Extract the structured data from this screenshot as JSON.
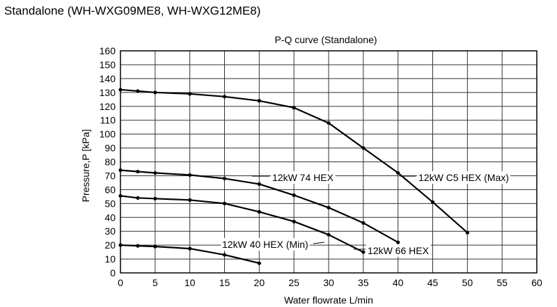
{
  "page": {
    "title": "Standalone (WH-WXG09ME8, WH-WXG12ME8)"
  },
  "chart_data": {
    "type": "line",
    "title": "P-Q curve (Standalone)",
    "xlabel": "Water flowrate L/min",
    "ylabel": "Pressure,P [kPa]",
    "xlim": [
      0,
      60
    ],
    "ylim": [
      0,
      160
    ],
    "xticks": [
      "0",
      "5",
      "10",
      "15",
      "20",
      "25",
      "30",
      "35",
      "40",
      "45",
      "50",
      "55",
      "60"
    ],
    "yticks": [
      "0",
      "10",
      "20",
      "30",
      "40",
      "50",
      "60",
      "70",
      "80",
      "90",
      "100",
      "110",
      "120",
      "130",
      "140",
      "150",
      "160"
    ],
    "grid": true,
    "series": [
      {
        "name": "12kW C5 HEX (Max)",
        "points": [
          [
            0,
            132
          ],
          [
            2.5,
            131
          ],
          [
            5,
            130
          ],
          [
            10,
            129
          ],
          [
            15,
            127
          ],
          [
            20,
            124
          ],
          [
            25,
            119
          ],
          [
            30,
            108
          ],
          [
            35,
            90
          ],
          [
            40,
            72
          ],
          [
            45,
            51
          ],
          [
            50,
            29
          ]
        ]
      },
      {
        "name": "12kW 74 HEX",
        "points": [
          [
            0,
            74
          ],
          [
            2.5,
            73
          ],
          [
            5,
            72
          ],
          [
            10,
            70.5
          ],
          [
            15,
            68
          ],
          [
            20,
            64
          ],
          [
            25,
            56
          ],
          [
            30,
            47
          ],
          [
            35,
            36
          ],
          [
            40,
            22
          ]
        ]
      },
      {
        "name": "12kW 66 HEX",
        "points": [
          [
            0,
            55.5
          ],
          [
            2.5,
            54
          ],
          [
            5,
            53.5
          ],
          [
            10,
            52.5
          ],
          [
            15,
            50
          ],
          [
            20,
            44
          ],
          [
            25,
            37
          ],
          [
            30,
            27.5
          ],
          [
            35,
            15
          ]
        ]
      },
      {
        "name": "12kW 40 HEX (Min)",
        "points": [
          [
            0,
            20
          ],
          [
            2.5,
            19.5
          ],
          [
            5,
            19
          ],
          [
            10,
            17.5
          ],
          [
            15,
            13
          ],
          [
            20,
            7
          ]
        ]
      }
    ]
  }
}
